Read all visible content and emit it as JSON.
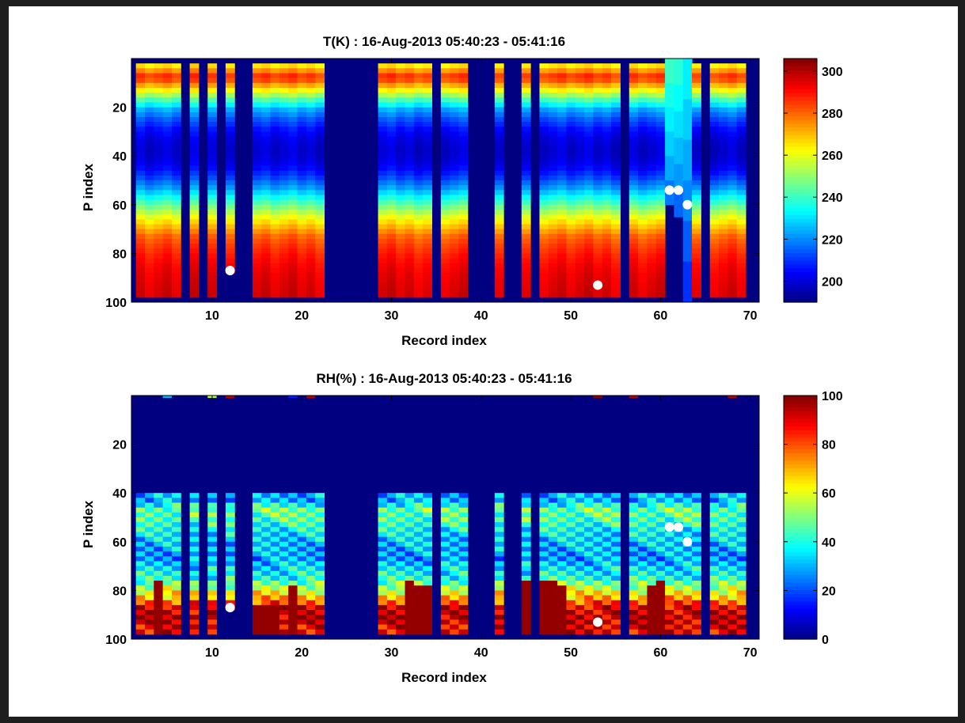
{
  "chart_data": [
    {
      "type": "heatmap",
      "title": "T(K) : 16-Aug-2013 05:40:23 - 05:41:16",
      "xlabel": "Record index",
      "ylabel": "P index",
      "xlim": [
        1,
        71
      ],
      "ylim": [
        0,
        100
      ],
      "y_axis_reversed": true,
      "xticks": [
        10,
        20,
        30,
        40,
        50,
        60,
        70
      ],
      "yticks": [
        20,
        40,
        60,
        80,
        100
      ],
      "colormap": "jet",
      "clim": [
        190,
        306
      ],
      "colorbar_ticks": [
        200,
        220,
        240,
        260,
        280,
        300
      ],
      "colorbar_label": "",
      "fill_value": 190,
      "valid_records": [
        2,
        3,
        4,
        5,
        6,
        8,
        10,
        12,
        15,
        16,
        17,
        18,
        19,
        20,
        21,
        22,
        29,
        30,
        31,
        32,
        33,
        34,
        36,
        37,
        38,
        42,
        45,
        47,
        48,
        49,
        50,
        51,
        52,
        53,
        54,
        55,
        57,
        58,
        59,
        60,
        61,
        62,
        63,
        64,
        66,
        67,
        68,
        69
      ],
      "profile_levels": [
        2,
        4,
        6,
        8,
        10,
        12,
        14,
        16,
        18,
        20,
        24,
        28,
        32,
        36,
        40,
        44,
        48,
        52,
        56,
        60,
        64,
        68,
        72,
        76,
        80,
        84,
        88,
        92,
        96
      ],
      "profile_values": [
        265,
        275,
        285,
        282,
        272,
        262,
        252,
        242,
        233,
        224,
        214,
        206,
        201,
        199,
        200,
        204,
        212,
        222,
        235,
        248,
        260,
        270,
        280,
        285,
        289,
        292,
        294,
        295,
        296
      ],
      "profile_bottom": 97,
      "record_bottom_overrides": [
        {
          "record": 12,
          "bottom": 87
        }
      ],
      "stepped_segment": {
        "records": [
          61,
          62,
          63
        ],
        "tops": [
          0,
          0,
          0
        ],
        "bottoms": [
          60,
          65,
          100
        ],
        "values": [
          [
            240,
            236,
            232,
            228,
            224,
            218
          ],
          [
            238,
            234,
            230,
            226,
            222,
            216
          ],
          [
            232,
            228,
            224,
            220,
            215,
            210
          ]
        ]
      },
      "markers": [
        {
          "x": 12,
          "y": 87
        },
        {
          "x": 53,
          "y": 93
        },
        {
          "x": 61,
          "y": 54
        },
        {
          "x": 62,
          "y": 54
        },
        {
          "x": 63,
          "y": 60
        }
      ]
    },
    {
      "type": "heatmap",
      "title": "RH(%) : 16-Aug-2013 05:40:23 - 05:41:16",
      "xlabel": "Record index",
      "ylabel": "P index",
      "xlim": [
        1,
        71
      ],
      "ylim": [
        0,
        100
      ],
      "y_axis_reversed": true,
      "xticks": [
        10,
        20,
        30,
        40,
        50,
        60,
        70
      ],
      "yticks": [
        20,
        40,
        60,
        80,
        100
      ],
      "colormap": "jet",
      "clim": [
        0,
        100
      ],
      "colorbar_ticks": [
        0,
        20,
        40,
        60,
        80,
        100
      ],
      "colorbar_label": "",
      "fill_value": 0,
      "valid_records": [
        2,
        3,
        4,
        5,
        6,
        8,
        10,
        12,
        15,
        16,
        17,
        18,
        19,
        20,
        21,
        22,
        29,
        30,
        31,
        32,
        33,
        34,
        36,
        37,
        38,
        42,
        45,
        47,
        48,
        49,
        50,
        51,
        52,
        53,
        54,
        55,
        57,
        58,
        59,
        60,
        61,
        62,
        63,
        64,
        66,
        67,
        68,
        69
      ],
      "dry_above": 40,
      "moist_levels": [
        42,
        46,
        50,
        54,
        58,
        62,
        66,
        70,
        74,
        78,
        82,
        86,
        90,
        94
      ],
      "moist_values": [
        30,
        48,
        45,
        38,
        33,
        30,
        28,
        35,
        40,
        55,
        70,
        90,
        95,
        90
      ],
      "profile_bottom": 97,
      "record_bottom_overrides": [
        {
          "record": 12,
          "bottom": 87
        }
      ],
      "saturated_records": [
        {
          "record": 4,
          "from": 75
        },
        {
          "record": 15,
          "from": 85
        },
        {
          "record": 16,
          "from": 85
        },
        {
          "record": 17,
          "from": 85
        },
        {
          "record": 19,
          "from": 78
        },
        {
          "record": 32,
          "from": 76
        },
        {
          "record": 33,
          "from": 78
        },
        {
          "record": 34,
          "from": 78
        },
        {
          "record": 45,
          "from": 76
        },
        {
          "record": 47,
          "from": 76
        },
        {
          "record": 48,
          "from": 76
        },
        {
          "record": 49,
          "from": 78
        },
        {
          "record": 59,
          "from": 78
        },
        {
          "record": 60,
          "from": 75
        }
      ],
      "top_row_values": [
        {
          "record": 5,
          "value": 30
        },
        {
          "record": 10,
          "value": 55
        },
        {
          "record": 12,
          "value": 95
        },
        {
          "record": 19,
          "value": 15
        },
        {
          "record": 21,
          "value": 95
        },
        {
          "record": 53,
          "value": 98
        },
        {
          "record": 57,
          "value": 95
        },
        {
          "record": 68,
          "value": 95
        }
      ],
      "markers": [
        {
          "x": 12,
          "y": 87
        },
        {
          "x": 53,
          "y": 93
        },
        {
          "x": 61,
          "y": 54
        },
        {
          "x": 62,
          "y": 54
        },
        {
          "x": 63,
          "y": 60
        }
      ]
    }
  ]
}
